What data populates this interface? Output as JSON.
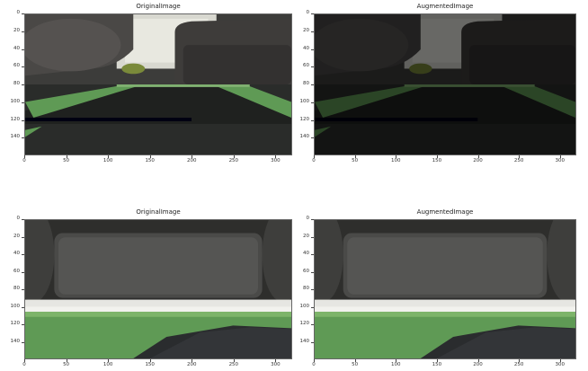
{
  "panels": [
    {
      "title": "OriginalImage",
      "variant": "orig-top",
      "yticks": [
        "0",
        "20",
        "40",
        "60",
        "80",
        "100",
        "120",
        "140"
      ],
      "xticks": [
        "0",
        "50",
        "100",
        "150",
        "200",
        "250",
        "300"
      ]
    },
    {
      "title": "AugmentedImage",
      "variant": "aug-top",
      "yticks": [
        "0",
        "20",
        "40",
        "60",
        "80",
        "100",
        "120",
        "140"
      ],
      "xticks": [
        "0",
        "50",
        "100",
        "150",
        "200",
        "250",
        "300"
      ]
    },
    {
      "title": "OriginalImage",
      "variant": "orig-bottom",
      "yticks": [
        "0",
        "20",
        "40",
        "60",
        "80",
        "100",
        "120",
        "140"
      ],
      "xticks": [
        "0",
        "50",
        "100",
        "150",
        "200",
        "250",
        "300"
      ]
    },
    {
      "title": "AugmentedImage",
      "variant": "aug-bottom",
      "yticks": [
        "0",
        "20",
        "40",
        "60",
        "80",
        "100",
        "120",
        "140"
      ],
      "xticks": [
        "0",
        "50",
        "100",
        "150",
        "200",
        "250",
        "300"
      ]
    }
  ],
  "colors": {
    "sofa": "#3a3a38",
    "floor_green": "#5f9a55",
    "floor_dark": "#2c2e2c",
    "window": "#d8d8d0"
  },
  "axis": {
    "x_max": 320,
    "y_max": 160
  }
}
